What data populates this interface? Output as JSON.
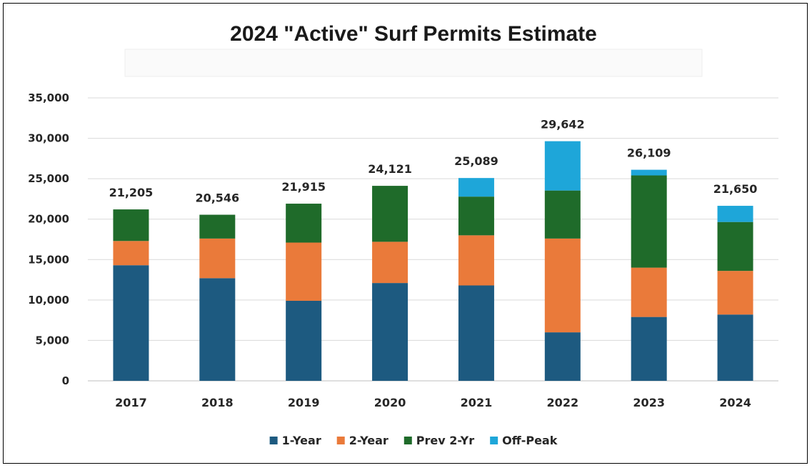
{
  "chart_data": {
    "type": "bar",
    "stacked": true,
    "title": "2024 \"Active\" Surf Permits Estimate",
    "categories": [
      "2017",
      "2018",
      "2019",
      "2020",
      "2021",
      "2022",
      "2023",
      "2024"
    ],
    "series": [
      {
        "name": "1-Year",
        "color": "#1d5a80",
        "values": [
          14300,
          12700,
          9900,
          12100,
          11800,
          6000,
          7900,
          8200
        ]
      },
      {
        "name": "2-Year",
        "color": "#ea7a3a",
        "values": [
          3000,
          4900,
          7200,
          5100,
          6200,
          11600,
          6100,
          5400
        ]
      },
      {
        "name": "Prev 2-Yr",
        "color": "#1f6b2a",
        "values": [
          3905,
          2946,
          4815,
          6921,
          4789,
          5942,
          11409,
          6050
        ]
      },
      {
        "name": "Off-Peak",
        "color": "#1ea6d9",
        "values": [
          0,
          0,
          0,
          0,
          2300,
          6100,
          700,
          2000
        ]
      }
    ],
    "totals": [
      "21,205",
      "20,546",
      "21,915",
      "24,121",
      "25,089",
      "29,642",
      "26,109",
      "21,650"
    ],
    "y_ticks": [
      "0",
      "5,000",
      "10,000",
      "15,000",
      "20,000",
      "25,000",
      "30,000",
      "35,000"
    ],
    "ylim": [
      0,
      35000
    ],
    "grid": true,
    "legend_position": "bottom"
  }
}
